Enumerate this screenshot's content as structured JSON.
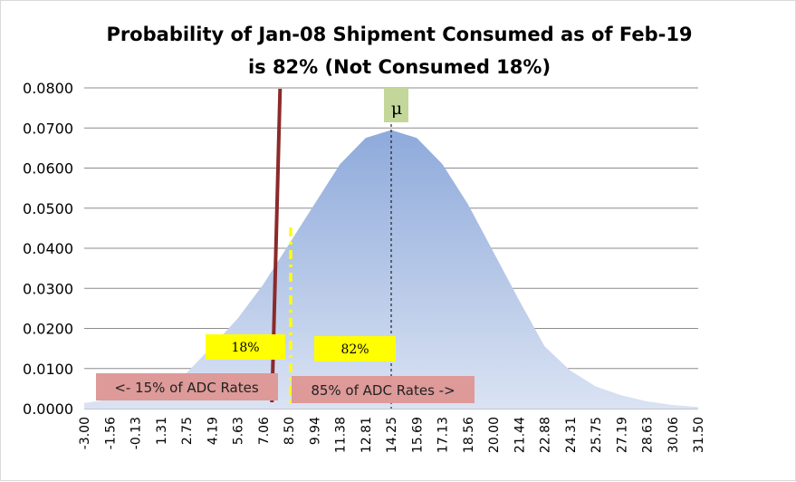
{
  "chart_data": {
    "type": "area",
    "title_line1": "Probability of Jan-08 Shipment Consumed as of Feb-19",
    "title_line2": "is 82% (Not Consumed 18%)",
    "ylim": [
      0,
      0.08
    ],
    "yticks": [
      "0.0000",
      "0.0100",
      "0.0200",
      "0.0300",
      "0.0400",
      "0.0500",
      "0.0600",
      "0.0700",
      "0.0800"
    ],
    "x": [
      "-3.00",
      "-1.56",
      "-0.13",
      "1.31",
      "2.75",
      "4.19",
      "5.63",
      "7.06",
      "8.50",
      "9.94",
      "11.38",
      "12.81",
      "14.25",
      "15.69",
      "17.13",
      "18.56",
      "20.00",
      "21.44",
      "22.88",
      "24.31",
      "25.75",
      "27.19",
      "28.63",
      "30.06",
      "31.50"
    ],
    "values": [
      0.0014,
      0.0023,
      0.0036,
      0.0056,
      0.0089,
      0.0155,
      0.0225,
      0.031,
      0.041,
      0.051,
      0.061,
      0.0675,
      0.0695,
      0.0675,
      0.061,
      0.051,
      0.039,
      0.027,
      0.0155,
      0.0095,
      0.0055,
      0.0033,
      0.0018,
      0.0009,
      0.0004
    ],
    "grid": true,
    "colors": {
      "fill_top": "#8eaadb",
      "fill_bottom": "#dae3f3",
      "threshold_line": "#8b2a2a",
      "yellow": "#ffff00",
      "pink": "#dd9a98",
      "mu_box": "#c4d79b",
      "grid": "#8c8c8c"
    },
    "annotations": {
      "mu": "μ",
      "left_pct": "18%",
      "right_pct": "82%",
      "left_range": "<-  15% of ADC Rates",
      "right_range": "85% of ADC Rates ->"
    },
    "threshold_x": 7.75,
    "yellow_line_x": 8.5,
    "mean_x": 14.25
  }
}
